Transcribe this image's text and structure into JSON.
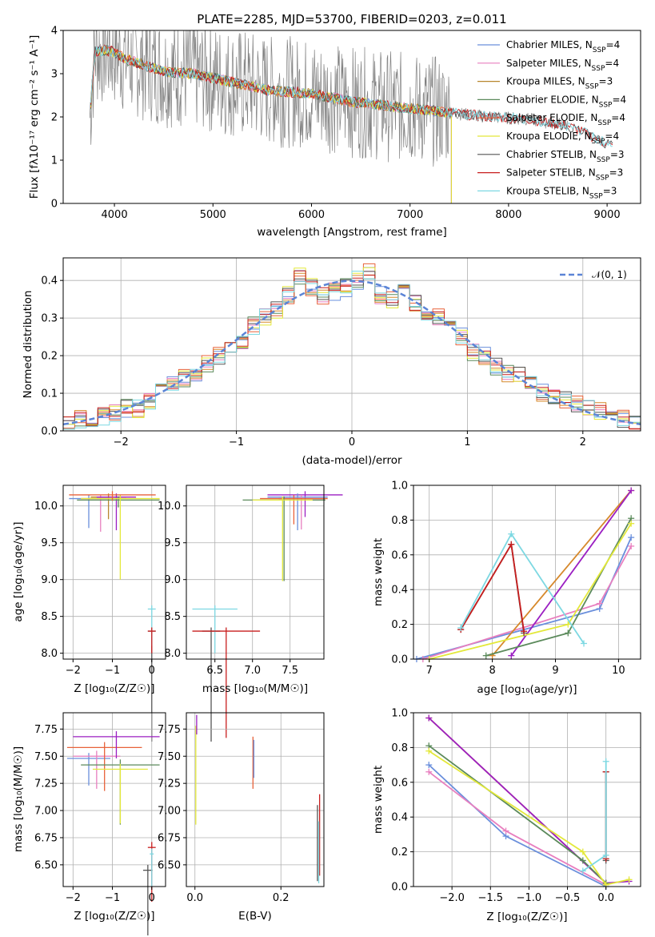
{
  "title": "PLATE=2285, MJD=53700, FIBERID=0203, z=0.011",
  "colors": {
    "grid": "#b0b0b0",
    "normal": "#5b84d6",
    "models": [
      "#6a8fdc",
      "#e87fbf",
      "#d6882a",
      "#5b8a5b",
      "#e8623a",
      "#e3e83a",
      "#555555",
      "#c81e1e",
      "#7dd8e2"
    ],
    "data_spectrum": "#808080"
  },
  "chart_data": [
    {
      "id": "spectrum",
      "type": "line",
      "xlabel": "wavelength [Angstrom, rest frame]",
      "ylabel": "Flux [f_λ 10^-17 erg cm^-2 s^-1 A^-1]",
      "xlim": [
        3480,
        9340
      ],
      "ylim": [
        0,
        4
      ],
      "xticks": [
        4000,
        5000,
        6000,
        7000,
        8000,
        9000
      ],
      "yticks": [
        0,
        1,
        2,
        3,
        4
      ],
      "legend_position": "top-right",
      "legend": [
        {
          "name": "Chabrier MILES, N_SSP=4",
          "color": "#6a8fdc"
        },
        {
          "name": "Salpeter MILES, N_SSP=4",
          "color": "#e87fbf"
        },
        {
          "name": "Kroupa MILES, N_SSP=3",
          "color": "#b8862e"
        },
        {
          "name": "Chabrier ELODIE, N_SSP=4",
          "color": "#5b8a5b"
        },
        {
          "name": "Salpeter ELODIE, N_SSP=4",
          "color": "#e8623a"
        },
        {
          "name": "Kroupa ELODIE, N_SSP=4",
          "color": "#e3e83a"
        },
        {
          "name": "Chabrier STELIB, N_SSP=3",
          "color": "#555555"
        },
        {
          "name": "Salpeter STELIB, N_SSP=3",
          "color": "#c81e1e"
        },
        {
          "name": "Kroupa STELIB, N_SSP=3",
          "color": "#7dd8e2"
        }
      ],
      "model_curve": {
        "x": [
          3750,
          3800,
          3900,
          4000,
          4100,
          4300,
          4500,
          4800,
          5000,
          5300,
          5600,
          6000,
          6400,
          6800,
          7200,
          7400,
          7800,
          8200,
          8600,
          8800,
          9060
        ],
        "y": [
          2.0,
          3.5,
          3.55,
          3.5,
          3.35,
          3.2,
          3.05,
          3.0,
          2.9,
          2.75,
          2.6,
          2.55,
          2.35,
          2.25,
          2.15,
          2.1,
          2.0,
          1.95,
          1.8,
          1.6,
          1.3
        ]
      }
    },
    {
      "id": "residuals",
      "type": "bar",
      "xlabel": "(data-model)/error",
      "ylabel": "Normed distribution",
      "xlim": [
        -2.5,
        2.5
      ],
      "ylim": [
        0,
        0.46
      ],
      "xticks": [
        -2,
        -1,
        0,
        1,
        2
      ],
      "yticks": [
        0.0,
        0.1,
        0.2,
        0.3,
        0.4
      ],
      "legend": [
        {
          "name": "N(0,1)"
        }
      ],
      "hist_bins": [
        -2.5,
        -2.4,
        -2.3,
        -2.2,
        -2.1,
        -2.0,
        -1.9,
        -1.8,
        -1.7,
        -1.6,
        -1.5,
        -1.4,
        -1.3,
        -1.2,
        -1.1,
        -1.0,
        -0.9,
        -0.8,
        -0.7,
        -0.6,
        -0.5,
        -0.4,
        -0.3,
        -0.2,
        -0.1,
        0.0,
        0.1,
        0.2,
        0.3,
        0.4,
        0.5,
        0.6,
        0.7,
        0.8,
        0.9,
        1.0,
        1.1,
        1.2,
        1.3,
        1.4,
        1.5,
        1.6,
        1.7,
        1.8,
        1.9,
        2.0,
        2.1,
        2.2,
        2.3,
        2.4,
        2.5
      ],
      "hist_values": [
        0.02,
        0.03,
        0.035,
        0.04,
        0.05,
        0.06,
        0.06,
        0.08,
        0.1,
        0.12,
        0.14,
        0.15,
        0.18,
        0.2,
        0.22,
        0.24,
        0.28,
        0.3,
        0.32,
        0.36,
        0.41,
        0.38,
        0.36,
        0.37,
        0.38,
        0.4,
        0.42,
        0.36,
        0.35,
        0.38,
        0.34,
        0.3,
        0.3,
        0.28,
        0.25,
        0.21,
        0.2,
        0.17,
        0.15,
        0.15,
        0.12,
        0.1,
        0.09,
        0.08,
        0.07,
        0.06,
        0.05,
        0.04,
        0.03,
        0.02
      ]
    },
    {
      "id": "age-vs-Z",
      "type": "scatter",
      "xlabel": "Z [log10(Z/Z☉)]",
      "ylabel": "age  [log10(age/yr)]",
      "xlim": [
        -2.25,
        0.35
      ],
      "ylim": [
        7.92,
        10.28
      ],
      "xticks": [
        -2,
        -1,
        0
      ],
      "yticks": [
        8.0,
        8.5,
        9.0,
        9.5,
        10.0,
        10.5
      ],
      "points": [
        {
          "x": -1.6,
          "y": 10.1,
          "xerr": 0.5,
          "yerr": 0.4,
          "color": "#6a8fdc"
        },
        {
          "x": -1.3,
          "y": 10.1,
          "xerr": 0.5,
          "yerr": 0.45,
          "color": "#e87fbf"
        },
        {
          "x": -1.1,
          "y": 10.12,
          "xerr": 0.45,
          "yerr": 0.3,
          "color": "#b8862e"
        },
        {
          "x": -0.9,
          "y": 10.12,
          "xerr": 0.5,
          "yerr": 0.45,
          "color": "#9b1fc2"
        },
        {
          "x": -0.85,
          "y": 10.08,
          "xerr": 1.05,
          "yerr": 0.1,
          "color": "#5b8a5b"
        },
        {
          "x": -0.8,
          "y": 10.1,
          "xerr": 1.0,
          "yerr": 1.1,
          "color": "#e3e83a"
        },
        {
          "x": -1.0,
          "y": 10.15,
          "xerr": 1.1,
          "yerr": 0.08,
          "color": "#e8623a"
        },
        {
          "x": 0.0,
          "y": 8.3,
          "xerr": 0.1,
          "yerr": 1.5,
          "color": "#555555"
        },
        {
          "x": 0.0,
          "y": 8.6,
          "xerr": 0.1,
          "yerr": 0.5,
          "color": "#7dd8e2"
        },
        {
          "x": 0.0,
          "y": 8.3,
          "xerr": 0.1,
          "yerr": 0.3,
          "color": "#c81e1e"
        }
      ]
    },
    {
      "id": "age-vs-mass",
      "type": "scatter",
      "xlabel": "mass [log10(M/M☉)]",
      "ylabel": "",
      "xlim": [
        6.12,
        7.95
      ],
      "ylim": [
        7.92,
        10.28
      ],
      "xticks": [
        6.5,
        7.0,
        7.5
      ],
      "yticks": [
        8.0,
        8.5,
        9.0,
        9.5,
        10.0
      ]
    },
    {
      "id": "weight-vs-age",
      "type": "line",
      "xlabel": "age  [log10(age/yr)]",
      "ylabel": "mass weight",
      "xlim": [
        6.75,
        10.35
      ],
      "ylim": [
        0,
        1
      ],
      "xticks": [
        7,
        8,
        9,
        10
      ],
      "yticks": [
        0.0,
        0.2,
        0.4,
        0.6,
        0.8,
        1.0
      ],
      "series": [
        {
          "color": "#6a8fdc",
          "x": [
            6.8,
            9.7,
            10.2
          ],
          "y": [
            0.0,
            0.29,
            0.7
          ]
        },
        {
          "color": "#e87fbf",
          "x": [
            6.9,
            9.7,
            10.2
          ],
          "y": [
            0.0,
            0.32,
            0.65
          ]
        },
        {
          "color": "#d6882a",
          "x": [
            8.0,
            10.2
          ],
          "y": [
            0.02,
            0.97
          ]
        },
        {
          "color": "#9b1fc2",
          "x": [
            8.3,
            10.2
          ],
          "y": [
            0.02,
            0.97
          ]
        },
        {
          "color": "#5b8a5b",
          "x": [
            7.9,
            9.2,
            10.2
          ],
          "y": [
            0.02,
            0.15,
            0.81
          ]
        },
        {
          "color": "#e3e83a",
          "x": [
            7.0,
            9.2,
            10.2
          ],
          "y": [
            0.0,
            0.2,
            0.78
          ]
        },
        {
          "color": "#555555",
          "x": [
            7.5,
            8.3,
            8.5
          ],
          "y": [
            0.17,
            0.66,
            0.15
          ]
        },
        {
          "color": "#c81e1e",
          "x": [
            7.5,
            8.3,
            8.5
          ],
          "y": [
            0.17,
            0.66,
            0.16
          ]
        },
        {
          "color": "#7dd8e2",
          "x": [
            7.5,
            8.3,
            9.45
          ],
          "y": [
            0.18,
            0.72,
            0.09
          ]
        }
      ]
    },
    {
      "id": "mass-vs-Z",
      "type": "scatter",
      "xlabel": "Z [log10(Z/Z☉)]",
      "ylabel": "mass [log10(M/M☉)]",
      "xlim": [
        -2.25,
        0.35
      ],
      "ylim": [
        6.3,
        7.9
      ],
      "xticks": [
        -2,
        -1,
        0
      ],
      "yticks": [
        6.5,
        6.75,
        7.0,
        7.25,
        7.5,
        7.75
      ]
    },
    {
      "id": "mass-vs-ebv",
      "type": "scatter",
      "xlabel": "E(B-V)",
      "ylabel": "",
      "xlim": [
        -0.02,
        0.3
      ],
      "ylim": [
        6.3,
        7.9
      ],
      "xticks": [
        0.0,
        0.2
      ],
      "yticks": [
        6.5,
        6.75,
        7.0,
        7.25,
        7.5,
        7.75
      ]
    },
    {
      "id": "weight-vs-Z",
      "type": "line",
      "xlabel": "Z [log10(Z/Z☉)]",
      "ylabel": "mass weight",
      "xlim": [
        -2.5,
        0.45
      ],
      "ylim": [
        0,
        1
      ],
      "xticks": [
        -2.0,
        -1.5,
        -1.0,
        -0.5,
        0.0
      ],
      "yticks": [
        0.0,
        0.2,
        0.4,
        0.6,
        0.8,
        1.0
      ],
      "series": [
        {
          "color": "#6a8fdc",
          "x": [
            -2.3,
            -1.3,
            0.0
          ],
          "y": [
            0.7,
            0.29,
            0.0
          ]
        },
        {
          "color": "#e87fbf",
          "x": [
            -2.3,
            -1.3,
            0.0
          ],
          "y": [
            0.66,
            0.32,
            0.01
          ]
        },
        {
          "color": "#d6882a",
          "x": [
            -2.3,
            0.0
          ],
          "y": [
            0.97,
            0.02
          ]
        },
        {
          "color": "#9b1fc2",
          "x": [
            -2.3,
            0.0,
            0.3
          ],
          "y": [
            0.97,
            0.02,
            0.03
          ]
        },
        {
          "color": "#5b8a5b",
          "x": [
            -2.3,
            -0.3,
            0.0
          ],
          "y": [
            0.81,
            0.15,
            0.02
          ]
        },
        {
          "color": "#e3e83a",
          "x": [
            -2.3,
            -0.3,
            0.0,
            0.3
          ],
          "y": [
            0.78,
            0.2,
            0.01,
            0.04
          ]
        },
        {
          "color": "#555555",
          "x": [
            0.0,
            0.0
          ],
          "y": [
            0.15,
            0.66
          ]
        },
        {
          "color": "#c81e1e",
          "x": [
            0.0,
            0.0
          ],
          "y": [
            0.16,
            0.66
          ]
        },
        {
          "color": "#7dd8e2",
          "x": [
            -0.3,
            0.0,
            0.0
          ],
          "y": [
            0.09,
            0.18,
            0.72
          ]
        }
      ]
    }
  ]
}
